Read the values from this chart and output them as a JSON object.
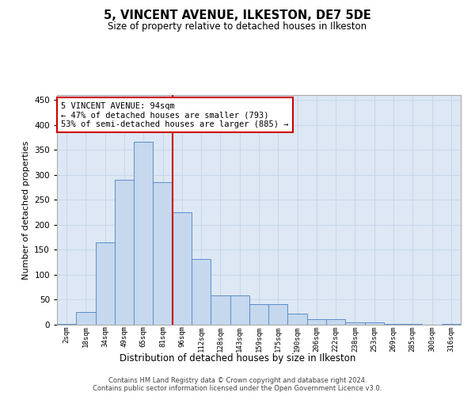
{
  "title": "5, VINCENT AVENUE, ILKESTON, DE7 5DE",
  "subtitle": "Size of property relative to detached houses in Ilkeston",
  "xlabel": "Distribution of detached houses by size in Ilkeston",
  "ylabel": "Number of detached properties",
  "categories": [
    "2sqm",
    "18sqm",
    "34sqm",
    "49sqm",
    "65sqm",
    "81sqm",
    "96sqm",
    "112sqm",
    "128sqm",
    "143sqm",
    "159sqm",
    "175sqm",
    "190sqm",
    "206sqm",
    "222sqm",
    "238sqm",
    "253sqm",
    "269sqm",
    "285sqm",
    "300sqm",
    "316sqm"
  ],
  "values": [
    2,
    26,
    165,
    291,
    367,
    286,
    225,
    132,
    59,
    59,
    42,
    42,
    22,
    11,
    11,
    5,
    4,
    2,
    1,
    0,
    1
  ],
  "bar_color": "#c5d8ee",
  "bar_edge_color": "#5b8dc8",
  "vline_color": "#cc0000",
  "annotation_text": "5 VINCENT AVENUE: 94sqm\n← 47% of detached houses are smaller (793)\n53% of semi-detached houses are larger (885) →",
  "annotation_box_color": "#ffffff",
  "annotation_box_edge": "#cc0000",
  "grid_color": "#c8d8ea",
  "background_color": "#dde8f4",
  "ylim": [
    0,
    460
  ],
  "yticks": [
    0,
    50,
    100,
    150,
    200,
    250,
    300,
    350,
    400,
    450
  ],
  "footer_line1": "Contains HM Land Registry data © Crown copyright and database right 2024.",
  "footer_line2": "Contains public sector information licensed under the Open Government Licence v3.0."
}
